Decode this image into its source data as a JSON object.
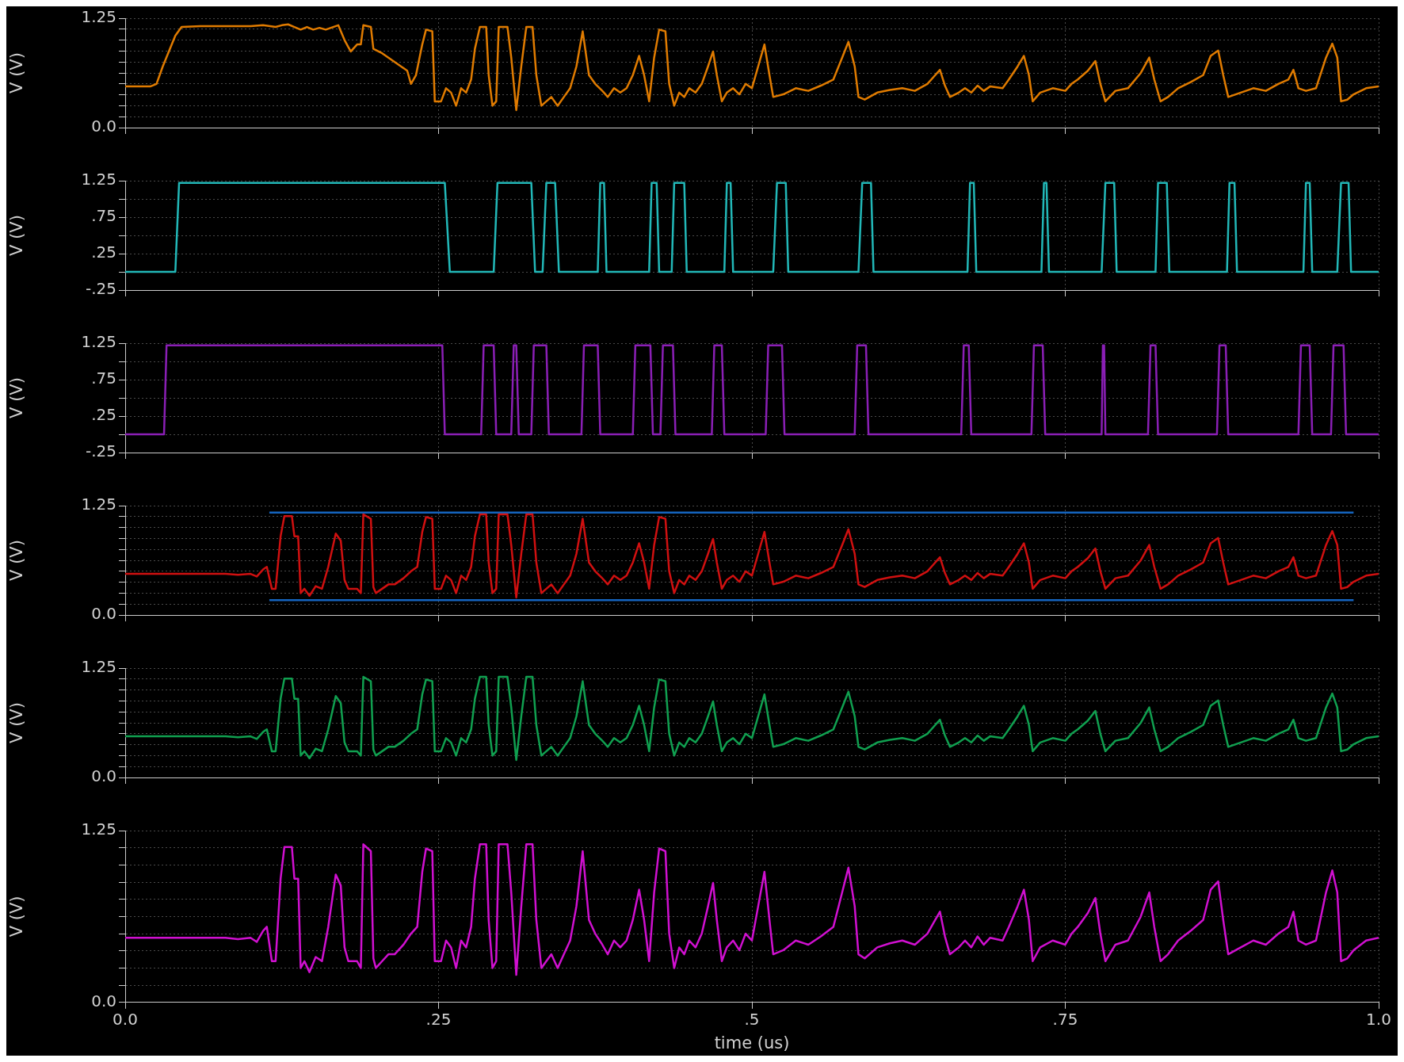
{
  "chart_data": [
    {
      "type": "line",
      "ylabel": "V (V)",
      "xlim": [
        0,
        1
      ],
      "xticks": [
        {
          "value": 0,
          "label": null
        },
        {
          "value": 0.25,
          "label": null
        },
        {
          "value": 0.5,
          "label": null
        },
        {
          "value": 0.75,
          "label": null
        },
        {
          "value": 1,
          "label": null
        }
      ],
      "ylim": [
        0,
        1.25
      ],
      "yticks": [
        {
          "value": 0,
          "label": "0.0"
        },
        {
          "value": 0.125,
          "label": null
        },
        {
          "value": 0.25,
          "label": null
        },
        {
          "value": 0.375,
          "label": null
        },
        {
          "value": 0.5,
          "label": null
        },
        {
          "value": 0.625,
          "label": null
        },
        {
          "value": 0.75,
          "label": null
        },
        {
          "value": 0.875,
          "label": null
        },
        {
          "value": 1,
          "label": null
        },
        {
          "value": 1.125,
          "label": null
        },
        {
          "value": 1.25,
          "label": "1.25"
        }
      ],
      "grid": true,
      "tick_labels": "y",
      "marker": "none",
      "series": [
        {
          "color": "#e07b00",
          "x": [
            0,
            0.02,
            0.025,
            0.03,
            0.04,
            0.045,
            0.06,
            0.1,
            0.11,
            0.12,
            0.125,
            0.13,
            0.135,
            0.14,
            0.145,
            0.15,
            0.155,
            0.16,
            0.17,
            0.175,
            0.178,
            0.18,
            0.185,
            0.188,
            0.19,
            0.196,
            0.198,
            0.205,
            0.21,
            0.215,
            0.22,
            0.225,
            0.228,
            0.232,
            0.237,
            0.24,
            0.245,
            0.247,
            0.252,
            0.256,
            0.26,
            0.264,
            0.268,
            0.272,
            0.276,
            0.279,
            0.283,
            0.288,
            0.29,
            0.293,
            0.296,
            0.298,
            0.305,
            0.308,
            0.312,
            0.316,
            0.32,
            0.325,
            0.328,
            0.332,
            0.336,
            0.34,
            0.345,
            0.35,
            0.355,
            0.36,
            0.365,
            0.37,
            0.375,
            0.38,
            0.385,
            0.39,
            0.395,
            0.4,
            0.405,
            0.41,
            0.414,
            0.418,
            0.422,
            0.426,
            0.431,
            0.434,
            0.438,
            0.442,
            0.446,
            0.45,
            0.455,
            0.46,
            0.465,
            0.469,
            0.472,
            0.476,
            0.48,
            0.485,
            0.49,
            0.495,
            0.5,
            0.505,
            0.51,
            0.514,
            0.517,
            0.525,
            0.535,
            0.545,
            0.555,
            0.565,
            0.572,
            0.577,
            0.582,
            0.585,
            0.59,
            0.6,
            0.61,
            0.62,
            0.63,
            0.64,
            0.645,
            0.65,
            0.654,
            0.658,
            0.665,
            0.67,
            0.675,
            0.68,
            0.685,
            0.69,
            0.7,
            0.705,
            0.712,
            0.717,
            0.721,
            0.724,
            0.73,
            0.74,
            0.75,
            0.755,
            0.76,
            0.768,
            0.774,
            0.778,
            0.782,
            0.79,
            0.8,
            0.81,
            0.817,
            0.821,
            0.826,
            0.832,
            0.84,
            0.85,
            0.86,
            0.866,
            0.872,
            0.876,
            0.88,
            0.89,
            0.9,
            0.91,
            0.92,
            0.928,
            0.932,
            0.936,
            0.942,
            0.95,
            0.958,
            0.963,
            0.967,
            0.97,
            0.975,
            0.98,
            0.99,
            1
          ],
          "values": [
            0.47,
            0.47,
            0.5,
            0.7,
            1.05,
            1.15,
            1.16,
            1.16,
            1.17,
            1.15,
            1.17,
            1.18,
            1.15,
            1.12,
            1.15,
            1.12,
            1.14,
            1.12,
            1.17,
            1.0,
            0.92,
            0.87,
            0.95,
            0.95,
            1.17,
            1.15,
            0.9,
            0.85,
            0.8,
            0.75,
            0.7,
            0.65,
            0.5,
            0.6,
            0.95,
            1.12,
            1.1,
            0.3,
            0.3,
            0.45,
            0.4,
            0.25,
            0.45,
            0.4,
            0.55,
            0.9,
            1.15,
            1.15,
            0.6,
            0.25,
            0.3,
            1.15,
            1.15,
            0.8,
            0.2,
            0.7,
            1.15,
            1.15,
            0.6,
            0.25,
            0.3,
            0.35,
            0.25,
            0.35,
            0.45,
            0.7,
            1.1,
            0.6,
            0.5,
            0.43,
            0.35,
            0.45,
            0.4,
            0.45,
            0.6,
            0.82,
            0.6,
            0.3,
            0.8,
            1.12,
            1.1,
            0.5,
            0.25,
            0.4,
            0.35,
            0.45,
            0.4,
            0.5,
            0.7,
            0.87,
            0.6,
            0.3,
            0.4,
            0.45,
            0.38,
            0.5,
            0.45,
            0.7,
            0.95,
            0.6,
            0.35,
            0.38,
            0.45,
            0.42,
            0.48,
            0.55,
            0.8,
            0.98,
            0.7,
            0.35,
            0.32,
            0.4,
            0.43,
            0.45,
            0.42,
            0.5,
            0.58,
            0.66,
            0.48,
            0.35,
            0.4,
            0.45,
            0.4,
            0.48,
            0.42,
            0.47,
            0.45,
            0.55,
            0.7,
            0.82,
            0.6,
            0.3,
            0.4,
            0.45,
            0.42,
            0.5,
            0.55,
            0.65,
            0.76,
            0.5,
            0.3,
            0.42,
            0.45,
            0.62,
            0.8,
            0.55,
            0.3,
            0.35,
            0.45,
            0.52,
            0.6,
            0.82,
            0.88,
            0.6,
            0.35,
            0.4,
            0.45,
            0.42,
            0.5,
            0.55,
            0.66,
            0.45,
            0.42,
            0.45,
            0.8,
            0.96,
            0.8,
            0.3,
            0.32,
            0.38,
            0.45,
            0.47
          ]
        }
      ]
    },
    {
      "type": "line",
      "ylabel": "V (V)",
      "xlim": [
        0,
        1
      ],
      "xticks": [
        {
          "value": 0,
          "label": null
        },
        {
          "value": 0.25,
          "label": null
        },
        {
          "value": 0.5,
          "label": null
        },
        {
          "value": 0.75,
          "label": null
        },
        {
          "value": 1,
          "label": null
        }
      ],
      "ylim": [
        -0.25,
        1.25
      ],
      "yticks": [
        {
          "value": -0.25,
          "label": "-.25"
        },
        {
          "value": 0,
          "label": null
        },
        {
          "value": 0.25,
          "label": ".25"
        },
        {
          "value": 0.5,
          "label": null
        },
        {
          "value": 0.75,
          "label": ".75"
        },
        {
          "value": 1,
          "label": null
        },
        {
          "value": 1.25,
          "label": "1.25"
        }
      ],
      "grid": true,
      "tick_labels": "y",
      "marker": "none",
      "series": [
        {
          "color": "#22b8b8",
          "x": [
            0,
            0.04,
            0.043,
            0.255,
            0.259,
            0.294,
            0.297,
            0.324,
            0.327,
            0.333,
            0.336,
            0.343,
            0.346,
            0.377,
            0.379,
            0.382,
            0.384,
            0.418,
            0.42,
            0.424,
            0.426,
            0.436,
            0.438,
            0.446,
            0.448,
            0.478,
            0.48,
            0.483,
            0.485,
            0.517,
            0.52,
            0.527,
            0.529,
            0.585,
            0.588,
            0.595,
            0.597,
            0.672,
            0.674,
            0.677,
            0.679,
            0.731,
            0.733,
            0.735,
            0.737,
            0.779,
            0.782,
            0.789,
            0.791,
            0.822,
            0.824,
            0.831,
            0.833,
            0.879,
            0.881,
            0.885,
            0.887,
            0.94,
            0.942,
            0.945,
            0.947,
            0.967,
            0.97,
            0.976,
            0.978,
            1
          ],
          "values": [
            0,
            0,
            1.22,
            1.22,
            0,
            0,
            1.22,
            1.22,
            0,
            0,
            1.22,
            1.22,
            0,
            0,
            1.22,
            1.22,
            0,
            0,
            1.22,
            1.22,
            0,
            0,
            1.22,
            1.22,
            0,
            0,
            1.22,
            1.22,
            0,
            0,
            1.22,
            1.22,
            0,
            0,
            1.22,
            1.22,
            0,
            0,
            1.22,
            1.22,
            0,
            0,
            1.22,
            1.22,
            0,
            0,
            1.22,
            1.22,
            0,
            0,
            1.22,
            1.22,
            0,
            0,
            1.22,
            1.22,
            0,
            0,
            1.22,
            1.22,
            0,
            0,
            1.22,
            1.22,
            0,
            0
          ]
        }
      ]
    },
    {
      "type": "line",
      "ylabel": "V (V)",
      "xlim": [
        0,
        1
      ],
      "xticks": [
        {
          "value": 0,
          "label": null
        },
        {
          "value": 0.25,
          "label": null
        },
        {
          "value": 0.5,
          "label": null
        },
        {
          "value": 0.75,
          "label": null
        },
        {
          "value": 1,
          "label": null
        }
      ],
      "ylim": [
        -0.25,
        1.25
      ],
      "yticks": [
        {
          "value": -0.25,
          "label": "-.25"
        },
        {
          "value": 0,
          "label": null
        },
        {
          "value": 0.25,
          "label": ".25"
        },
        {
          "value": 0.5,
          "label": null
        },
        {
          "value": 0.75,
          "label": ".75"
        },
        {
          "value": 1,
          "label": null
        },
        {
          "value": 1.25,
          "label": "1.25"
        }
      ],
      "grid": true,
      "tick_labels": "y",
      "marker": "none",
      "series": [
        {
          "color": "#8a1fb5",
          "x": [
            0,
            0.031,
            0.033,
            0.253,
            0.255,
            0.284,
            0.286,
            0.294,
            0.296,
            0.308,
            0.31,
            0.312,
            0.314,
            0.324,
            0.326,
            0.336,
            0.338,
            0.364,
            0.366,
            0.377,
            0.379,
            0.405,
            0.407,
            0.419,
            0.421,
            0.427,
            0.429,
            0.437,
            0.439,
            0.468,
            0.47,
            0.476,
            0.478,
            0.511,
            0.513,
            0.524,
            0.526,
            0.582,
            0.584,
            0.591,
            0.593,
            0.667,
            0.669,
            0.673,
            0.675,
            0.723,
            0.725,
            0.732,
            0.734,
            0.779,
            0.78,
            0.781,
            0.782,
            0.816,
            0.818,
            0.822,
            0.824,
            0.871,
            0.873,
            0.878,
            0.88,
            0.936,
            0.938,
            0.945,
            0.947,
            0.962,
            0.964,
            0.972,
            0.974,
            1
          ],
          "values": [
            0,
            0,
            1.22,
            1.22,
            0,
            0,
            1.22,
            1.22,
            0,
            0,
            1.22,
            1.22,
            0,
            0,
            1.22,
            1.22,
            0,
            0,
            1.22,
            1.22,
            0,
            0,
            1.22,
            1.22,
            0,
            0,
            1.22,
            1.22,
            0,
            0,
            1.22,
            1.22,
            0,
            0,
            1.22,
            1.22,
            0,
            0,
            1.22,
            1.22,
            0,
            0,
            1.22,
            1.22,
            0,
            0,
            1.22,
            1.22,
            0,
            0,
            1.22,
            1.22,
            0,
            0,
            1.22,
            1.22,
            0,
            0,
            1.22,
            1.22,
            0,
            0,
            1.22,
            1.22,
            0,
            0,
            1.22,
            1.22,
            0,
            0
          ]
        }
      ]
    },
    {
      "type": "line",
      "ylabel": "V (V)",
      "xlim": [
        0,
        1
      ],
      "xticks": [
        {
          "value": 0,
          "label": null
        },
        {
          "value": 0.25,
          "label": null
        },
        {
          "value": 0.5,
          "label": null
        },
        {
          "value": 0.75,
          "label": null
        },
        {
          "value": 1,
          "label": null
        }
      ],
      "ylim": [
        0,
        1.25
      ],
      "yticks": [
        {
          "value": 0,
          "label": "0.0"
        },
        {
          "value": 0.125,
          "label": null
        },
        {
          "value": 0.25,
          "label": null
        },
        {
          "value": 0.375,
          "label": null
        },
        {
          "value": 0.5,
          "label": null
        },
        {
          "value": 0.625,
          "label": null
        },
        {
          "value": 0.75,
          "label": null
        },
        {
          "value": 0.875,
          "label": null
        },
        {
          "value": 1,
          "label": null
        },
        {
          "value": 1.125,
          "label": null
        },
        {
          "value": 1.25,
          "label": "1.25"
        }
      ],
      "grid": true,
      "tick_labels": "y",
      "marker": "none",
      "series": [
        {
          "color": "#d01010",
          "x": [
            0,
            0.08,
            0.09,
            0.1,
            0.105,
            0.11,
            0.113,
            0.117,
            0.12,
            0.124,
            0.127,
            0.133,
            0.135,
            0.138,
            0.14,
            0.143,
            0.147,
            0.152,
            0.157,
            0.162,
            0.168,
            0.172,
            0.175,
            0.178,
            0.185,
            0.188,
            0.19,
            0.196,
            0.198,
            0.2,
            0.205,
            0.21,
            0.215,
            0.222,
            0.228,
            0.233,
            0.237,
            0.24,
            0.245,
            0.247,
            0.252,
            0.256,
            0.26,
            0.264,
            0.268,
            0.272,
            0.276,
            0.279,
            0.283,
            0.288,
            0.29,
            0.293,
            0.296,
            0.298,
            0.305,
            0.308,
            0.312,
            0.316,
            0.32,
            0.325,
            0.328,
            0.332,
            0.336,
            0.34,
            0.345,
            0.35,
            0.355,
            0.36,
            0.365,
            0.37,
            0.375,
            0.38,
            0.385,
            0.39,
            0.395,
            0.4,
            0.405,
            0.41,
            0.414,
            0.418,
            0.422,
            0.426,
            0.431,
            0.434,
            0.438,
            0.442,
            0.446,
            0.45,
            0.455,
            0.46,
            0.465,
            0.469,
            0.472,
            0.476,
            0.48,
            0.485,
            0.49,
            0.495,
            0.5,
            0.505,
            0.51,
            0.514,
            0.517,
            0.525,
            0.535,
            0.545,
            0.555,
            0.565,
            0.572,
            0.577,
            0.582,
            0.585,
            0.59,
            0.6,
            0.61,
            0.62,
            0.63,
            0.64,
            0.645,
            0.65,
            0.654,
            0.658,
            0.665,
            0.67,
            0.675,
            0.68,
            0.685,
            0.69,
            0.7,
            0.705,
            0.712,
            0.717,
            0.721,
            0.724,
            0.73,
            0.74,
            0.75,
            0.755,
            0.76,
            0.768,
            0.774,
            0.778,
            0.782,
            0.79,
            0.8,
            0.81,
            0.817,
            0.821,
            0.826,
            0.832,
            0.84,
            0.85,
            0.86,
            0.866,
            0.872,
            0.876,
            0.88,
            0.89,
            0.9,
            0.91,
            0.92,
            0.928,
            0.932,
            0.936,
            0.942,
            0.95,
            0.958,
            0.963,
            0.967,
            0.97,
            0.975,
            0.98,
            0.99,
            1
          ],
          "values": [
            0.47,
            0.47,
            0.46,
            0.47,
            0.44,
            0.52,
            0.55,
            0.3,
            0.3,
            0.9,
            1.13,
            1.13,
            0.9,
            0.9,
            0.25,
            0.3,
            0.22,
            0.33,
            0.3,
            0.55,
            0.93,
            0.85,
            0.4,
            0.3,
            0.3,
            0.25,
            1.15,
            1.1,
            0.32,
            0.25,
            0.3,
            0.35,
            0.35,
            0.42,
            0.5,
            0.55,
            0.95,
            1.12,
            1.1,
            0.3,
            0.3,
            0.45,
            0.4,
            0.25,
            0.45,
            0.4,
            0.55,
            0.9,
            1.15,
            1.15,
            0.6,
            0.25,
            0.3,
            1.15,
            1.15,
            0.8,
            0.2,
            0.7,
            1.15,
            1.15,
            0.6,
            0.25,
            0.3,
            0.35,
            0.25,
            0.35,
            0.45,
            0.7,
            1.1,
            0.6,
            0.5,
            0.43,
            0.35,
            0.45,
            0.4,
            0.45,
            0.6,
            0.82,
            0.6,
            0.3,
            0.8,
            1.12,
            1.1,
            0.5,
            0.25,
            0.4,
            0.35,
            0.45,
            0.4,
            0.5,
            0.7,
            0.87,
            0.6,
            0.3,
            0.4,
            0.45,
            0.38,
            0.5,
            0.45,
            0.7,
            0.95,
            0.6,
            0.35,
            0.38,
            0.45,
            0.42,
            0.48,
            0.55,
            0.8,
            0.98,
            0.7,
            0.35,
            0.32,
            0.4,
            0.43,
            0.45,
            0.42,
            0.5,
            0.58,
            0.66,
            0.48,
            0.35,
            0.4,
            0.45,
            0.4,
            0.48,
            0.42,
            0.47,
            0.45,
            0.55,
            0.7,
            0.82,
            0.6,
            0.3,
            0.4,
            0.45,
            0.42,
            0.5,
            0.55,
            0.65,
            0.76,
            0.5,
            0.3,
            0.42,
            0.45,
            0.62,
            0.8,
            0.55,
            0.3,
            0.35,
            0.45,
            0.52,
            0.6,
            0.82,
            0.88,
            0.6,
            0.35,
            0.4,
            0.45,
            0.42,
            0.5,
            0.55,
            0.66,
            0.45,
            0.42,
            0.45,
            0.8,
            0.96,
            0.8,
            0.3,
            0.32,
            0.38,
            0.45,
            0.47
          ]
        },
        {
          "color": "#1565c0",
          "x": [
            0.115,
            0.98
          ],
          "values": [
            1.17,
            1.17
          ]
        },
        {
          "color": "#1565c0",
          "x": [
            0.115,
            0.98
          ],
          "values": [
            0.17,
            0.17
          ]
        }
      ]
    },
    {
      "type": "line",
      "ylabel": "V (V)",
      "xlim": [
        0,
        1
      ],
      "xticks": [
        {
          "value": 0,
          "label": null
        },
        {
          "value": 0.25,
          "label": null
        },
        {
          "value": 0.5,
          "label": null
        },
        {
          "value": 0.75,
          "label": null
        },
        {
          "value": 1,
          "label": null
        }
      ],
      "ylim": [
        0,
        1.25
      ],
      "yticks": [
        {
          "value": 0,
          "label": "0.0"
        },
        {
          "value": 0.125,
          "label": null
        },
        {
          "value": 0.25,
          "label": null
        },
        {
          "value": 0.375,
          "label": null
        },
        {
          "value": 0.5,
          "label": null
        },
        {
          "value": 0.625,
          "label": null
        },
        {
          "value": 0.75,
          "label": null
        },
        {
          "value": 0.875,
          "label": null
        },
        {
          "value": 1,
          "label": null
        },
        {
          "value": 1.125,
          "label": null
        },
        {
          "value": 1.25,
          "label": "1.25"
        }
      ],
      "grid": true,
      "tick_labels": "y",
      "marker": "none",
      "series": [
        {
          "color": "#10a050",
          "x": [
            0,
            0.08,
            0.09,
            0.1,
            0.105,
            0.11,
            0.113,
            0.117,
            0.12,
            0.124,
            0.127,
            0.133,
            0.135,
            0.138,
            0.14,
            0.143,
            0.147,
            0.152,
            0.157,
            0.162,
            0.168,
            0.172,
            0.175,
            0.178,
            0.185,
            0.188,
            0.19,
            0.196,
            0.198,
            0.2,
            0.205,
            0.21,
            0.215,
            0.222,
            0.228,
            0.233,
            0.237,
            0.24,
            0.245,
            0.247,
            0.252,
            0.256,
            0.26,
            0.264,
            0.268,
            0.272,
            0.276,
            0.279,
            0.283,
            0.288,
            0.29,
            0.293,
            0.296,
            0.298,
            0.305,
            0.308,
            0.312,
            0.316,
            0.32,
            0.325,
            0.328,
            0.332,
            0.336,
            0.34,
            0.345,
            0.35,
            0.355,
            0.36,
            0.365,
            0.37,
            0.375,
            0.38,
            0.385,
            0.39,
            0.395,
            0.4,
            0.405,
            0.41,
            0.414,
            0.418,
            0.422,
            0.426,
            0.431,
            0.434,
            0.438,
            0.442,
            0.446,
            0.45,
            0.455,
            0.46,
            0.465,
            0.469,
            0.472,
            0.476,
            0.48,
            0.485,
            0.49,
            0.495,
            0.5,
            0.505,
            0.51,
            0.514,
            0.517,
            0.525,
            0.535,
            0.545,
            0.555,
            0.565,
            0.572,
            0.577,
            0.582,
            0.585,
            0.59,
            0.6,
            0.61,
            0.62,
            0.63,
            0.64,
            0.645,
            0.65,
            0.654,
            0.658,
            0.665,
            0.67,
            0.675,
            0.68,
            0.685,
            0.69,
            0.7,
            0.705,
            0.712,
            0.717,
            0.721,
            0.724,
            0.73,
            0.74,
            0.75,
            0.755,
            0.76,
            0.768,
            0.774,
            0.778,
            0.782,
            0.79,
            0.8,
            0.81,
            0.817,
            0.821,
            0.826,
            0.832,
            0.84,
            0.85,
            0.86,
            0.866,
            0.872,
            0.876,
            0.88,
            0.89,
            0.9,
            0.91,
            0.92,
            0.928,
            0.932,
            0.936,
            0.942,
            0.95,
            0.958,
            0.963,
            0.967,
            0.97,
            0.975,
            0.98,
            0.99,
            1
          ],
          "values": [
            0.47,
            0.47,
            0.46,
            0.47,
            0.44,
            0.52,
            0.55,
            0.3,
            0.3,
            0.9,
            1.13,
            1.13,
            0.9,
            0.9,
            0.25,
            0.3,
            0.22,
            0.33,
            0.3,
            0.55,
            0.93,
            0.85,
            0.4,
            0.3,
            0.3,
            0.25,
            1.15,
            1.1,
            0.32,
            0.25,
            0.3,
            0.35,
            0.35,
            0.42,
            0.5,
            0.55,
            0.95,
            1.12,
            1.1,
            0.3,
            0.3,
            0.45,
            0.4,
            0.25,
            0.45,
            0.4,
            0.55,
            0.9,
            1.15,
            1.15,
            0.6,
            0.25,
            0.3,
            1.15,
            1.15,
            0.8,
            0.2,
            0.7,
            1.15,
            1.15,
            0.6,
            0.25,
            0.3,
            0.35,
            0.25,
            0.35,
            0.45,
            0.7,
            1.1,
            0.6,
            0.5,
            0.43,
            0.35,
            0.45,
            0.4,
            0.45,
            0.6,
            0.82,
            0.6,
            0.3,
            0.8,
            1.12,
            1.1,
            0.5,
            0.25,
            0.4,
            0.35,
            0.45,
            0.4,
            0.5,
            0.7,
            0.87,
            0.6,
            0.3,
            0.4,
            0.45,
            0.38,
            0.5,
            0.45,
            0.7,
            0.95,
            0.6,
            0.35,
            0.38,
            0.45,
            0.42,
            0.48,
            0.55,
            0.8,
            0.98,
            0.7,
            0.35,
            0.32,
            0.4,
            0.43,
            0.45,
            0.42,
            0.5,
            0.58,
            0.66,
            0.48,
            0.35,
            0.4,
            0.45,
            0.4,
            0.48,
            0.42,
            0.47,
            0.45,
            0.55,
            0.7,
            0.82,
            0.6,
            0.3,
            0.4,
            0.45,
            0.42,
            0.5,
            0.55,
            0.65,
            0.76,
            0.5,
            0.3,
            0.42,
            0.45,
            0.62,
            0.8,
            0.55,
            0.3,
            0.35,
            0.45,
            0.52,
            0.6,
            0.82,
            0.88,
            0.6,
            0.35,
            0.4,
            0.45,
            0.42,
            0.5,
            0.55,
            0.66,
            0.45,
            0.42,
            0.45,
            0.8,
            0.96,
            0.8,
            0.3,
            0.32,
            0.38,
            0.45,
            0.47
          ]
        }
      ]
    },
    {
      "type": "line",
      "xlabel": "time (us)",
      "ylabel": "V (V)",
      "xlim": [
        0,
        1
      ],
      "xticks": [
        {
          "value": 0,
          "label": "0.0"
        },
        {
          "value": 0.25,
          "label": ".25"
        },
        {
          "value": 0.5,
          "label": ".5"
        },
        {
          "value": 0.75,
          "label": ".75"
        },
        {
          "value": 1,
          "label": "1.0"
        }
      ],
      "ylim": [
        0,
        1.25
      ],
      "yticks": [
        {
          "value": 0,
          "label": "0.0"
        },
        {
          "value": 0.125,
          "label": null
        },
        {
          "value": 0.25,
          "label": null
        },
        {
          "value": 0.375,
          "label": null
        },
        {
          "value": 0.5,
          "label": null
        },
        {
          "value": 0.625,
          "label": null
        },
        {
          "value": 0.75,
          "label": null
        },
        {
          "value": 0.875,
          "label": null
        },
        {
          "value": 1,
          "label": null
        },
        {
          "value": 1.125,
          "label": null
        },
        {
          "value": 1.25,
          "label": "1.25"
        }
      ],
      "grid": true,
      "marker": "none",
      "series": [
        {
          "color": "#d010d0",
          "x": [
            0,
            0.08,
            0.09,
            0.1,
            0.105,
            0.11,
            0.113,
            0.117,
            0.12,
            0.124,
            0.127,
            0.133,
            0.135,
            0.138,
            0.14,
            0.143,
            0.147,
            0.152,
            0.157,
            0.162,
            0.168,
            0.172,
            0.175,
            0.178,
            0.185,
            0.188,
            0.19,
            0.196,
            0.198,
            0.2,
            0.205,
            0.21,
            0.215,
            0.222,
            0.228,
            0.233,
            0.237,
            0.24,
            0.245,
            0.247,
            0.252,
            0.256,
            0.26,
            0.264,
            0.268,
            0.272,
            0.276,
            0.279,
            0.283,
            0.288,
            0.29,
            0.293,
            0.296,
            0.298,
            0.305,
            0.308,
            0.312,
            0.316,
            0.32,
            0.325,
            0.328,
            0.332,
            0.336,
            0.34,
            0.345,
            0.35,
            0.355,
            0.36,
            0.365,
            0.37,
            0.375,
            0.38,
            0.385,
            0.39,
            0.395,
            0.4,
            0.405,
            0.41,
            0.414,
            0.418,
            0.422,
            0.426,
            0.431,
            0.434,
            0.438,
            0.442,
            0.446,
            0.45,
            0.455,
            0.46,
            0.465,
            0.469,
            0.472,
            0.476,
            0.48,
            0.485,
            0.49,
            0.495,
            0.5,
            0.505,
            0.51,
            0.514,
            0.517,
            0.525,
            0.535,
            0.545,
            0.555,
            0.565,
            0.572,
            0.577,
            0.582,
            0.585,
            0.59,
            0.6,
            0.61,
            0.62,
            0.63,
            0.64,
            0.645,
            0.65,
            0.654,
            0.658,
            0.665,
            0.67,
            0.675,
            0.68,
            0.685,
            0.69,
            0.7,
            0.705,
            0.712,
            0.717,
            0.721,
            0.724,
            0.73,
            0.74,
            0.75,
            0.755,
            0.76,
            0.768,
            0.774,
            0.778,
            0.782,
            0.79,
            0.8,
            0.81,
            0.817,
            0.821,
            0.826,
            0.832,
            0.84,
            0.85,
            0.86,
            0.866,
            0.872,
            0.876,
            0.88,
            0.89,
            0.9,
            0.91,
            0.92,
            0.928,
            0.932,
            0.936,
            0.942,
            0.95,
            0.958,
            0.963,
            0.967,
            0.97,
            0.975,
            0.98,
            0.99,
            1
          ],
          "values": [
            0.47,
            0.47,
            0.46,
            0.47,
            0.44,
            0.52,
            0.55,
            0.3,
            0.3,
            0.9,
            1.13,
            1.13,
            0.9,
            0.9,
            0.25,
            0.3,
            0.22,
            0.33,
            0.3,
            0.55,
            0.93,
            0.85,
            0.4,
            0.3,
            0.3,
            0.25,
            1.15,
            1.1,
            0.32,
            0.25,
            0.3,
            0.35,
            0.35,
            0.42,
            0.5,
            0.55,
            0.95,
            1.12,
            1.1,
            0.3,
            0.3,
            0.45,
            0.4,
            0.25,
            0.45,
            0.4,
            0.55,
            0.9,
            1.15,
            1.15,
            0.6,
            0.25,
            0.3,
            1.15,
            1.15,
            0.8,
            0.2,
            0.7,
            1.15,
            1.15,
            0.6,
            0.25,
            0.3,
            0.35,
            0.25,
            0.35,
            0.45,
            0.7,
            1.1,
            0.6,
            0.5,
            0.43,
            0.35,
            0.45,
            0.4,
            0.45,
            0.6,
            0.82,
            0.6,
            0.3,
            0.8,
            1.12,
            1.1,
            0.5,
            0.25,
            0.4,
            0.35,
            0.45,
            0.4,
            0.5,
            0.7,
            0.87,
            0.6,
            0.3,
            0.4,
            0.45,
            0.38,
            0.5,
            0.45,
            0.7,
            0.95,
            0.6,
            0.35,
            0.38,
            0.45,
            0.42,
            0.48,
            0.55,
            0.8,
            0.98,
            0.7,
            0.35,
            0.32,
            0.4,
            0.43,
            0.45,
            0.42,
            0.5,
            0.58,
            0.66,
            0.48,
            0.35,
            0.4,
            0.45,
            0.4,
            0.48,
            0.42,
            0.47,
            0.45,
            0.55,
            0.7,
            0.82,
            0.6,
            0.3,
            0.4,
            0.45,
            0.42,
            0.5,
            0.55,
            0.65,
            0.76,
            0.5,
            0.3,
            0.42,
            0.45,
            0.62,
            0.8,
            0.55,
            0.3,
            0.35,
            0.45,
            0.52,
            0.6,
            0.82,
            0.88,
            0.6,
            0.35,
            0.4,
            0.45,
            0.42,
            0.5,
            0.55,
            0.66,
            0.45,
            0.42,
            0.45,
            0.8,
            0.96,
            0.8,
            0.3,
            0.32,
            0.38,
            0.45,
            0.47
          ]
        }
      ]
    }
  ]
}
